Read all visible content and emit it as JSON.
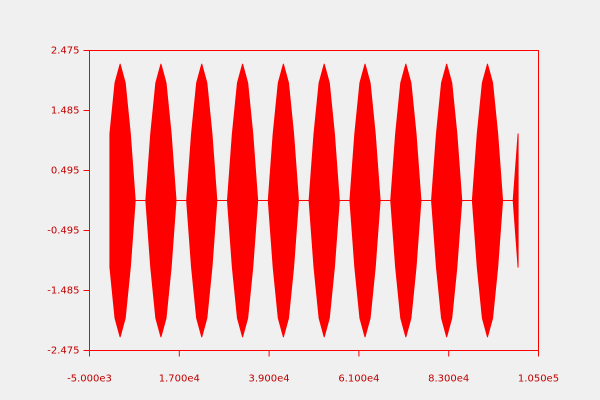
{
  "chart_data": {
    "type": "area",
    "color": "#ff0000",
    "x": [
      0,
      1250,
      2500,
      3750,
      5000,
      6200,
      8800,
      10000,
      11250,
      12500,
      13750,
      15000,
      16200,
      18800,
      20000,
      21250,
      22500,
      23750,
      25000,
      26200,
      28800,
      30000,
      31250,
      32500,
      33750,
      35000,
      36200,
      38800,
      40000,
      41250,
      42500,
      43750,
      45000,
      46200,
      48800,
      50000,
      51250,
      52500,
      53750,
      55000,
      56200,
      58800,
      60000,
      61250,
      62500,
      63750,
      65000,
      66200,
      68800,
      70000,
      71250,
      72500,
      73750,
      75000,
      76200,
      78800,
      80000,
      81250,
      82500,
      83750,
      85000,
      86200,
      88800,
      90000,
      91250,
      92500,
      93750,
      95000,
      96200,
      98800,
      100000
    ],
    "y_max": [
      1.1,
      1.94,
      2.25,
      1.94,
      1.1,
      0,
      0,
      1.1,
      1.94,
      2.25,
      1.94,
      1.1,
      0,
      0,
      1.1,
      1.94,
      2.25,
      1.94,
      1.1,
      0,
      0,
      1.1,
      1.94,
      2.25,
      1.94,
      1.1,
      0,
      0,
      1.1,
      1.94,
      2.25,
      1.94,
      1.1,
      0,
      0,
      1.1,
      1.94,
      2.25,
      1.94,
      1.1,
      0,
      0,
      1.1,
      1.94,
      2.25,
      1.94,
      1.1,
      0,
      0,
      1.1,
      1.94,
      2.25,
      1.94,
      1.1,
      0,
      0,
      1.1,
      1.94,
      2.25,
      1.94,
      1.1,
      0,
      0,
      1.1,
      1.94,
      2.25,
      1.94,
      1.1,
      0,
      0,
      1.1
    ],
    "y_min": [
      -1.1,
      -1.94,
      -2.25,
      -1.94,
      -1.1,
      0,
      0,
      -1.1,
      -1.94,
      -2.25,
      -1.94,
      -1.1,
      0,
      0,
      -1.1,
      -1.94,
      -2.25,
      -1.94,
      -1.1,
      0,
      0,
      -1.1,
      -1.94,
      -2.25,
      -1.94,
      -1.1,
      0,
      0,
      -1.1,
      -1.94,
      -2.25,
      -1.94,
      -1.1,
      0,
      0,
      -1.1,
      -1.94,
      -2.25,
      -1.94,
      -1.1,
      0,
      0,
      -1.1,
      -1.94,
      -2.25,
      -1.94,
      -1.1,
      0,
      0,
      -1.1,
      -1.94,
      -2.25,
      -1.94,
      -1.1,
      0,
      0,
      -1.1,
      -1.94,
      -2.25,
      -1.94,
      -1.1,
      0,
      0,
      -1.1,
      -1.94,
      -2.25,
      -1.94,
      -1.1,
      0,
      0,
      -1.1
    ],
    "xlim": [
      -5000,
      105000
    ],
    "xticks": [
      {
        "value": -5000,
        "label": "-5.000e3"
      },
      {
        "value": 17000,
        "label": "1.700e4"
      },
      {
        "value": 39000,
        "label": "3.900e4"
      },
      {
        "value": 61000,
        "label": "6.100e4"
      },
      {
        "value": 83000,
        "label": "8.300e4"
      },
      {
        "value": 105000,
        "label": "1.050e5"
      }
    ],
    "ylim": [
      -2.475,
      2.475
    ],
    "yticks": [
      -2.475,
      -1.485,
      -0.495,
      0.495,
      1.485,
      2.475
    ]
  }
}
